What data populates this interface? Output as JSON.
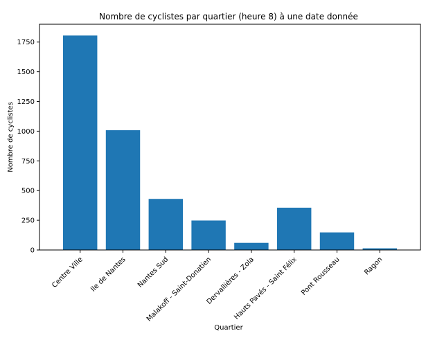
{
  "chart_data": {
    "type": "bar",
    "title": "Nombre de cyclistes par quartier (heure 8) à une date donnée",
    "xlabel": "Quartier",
    "ylabel": "Nombre de cyclistes",
    "categories": [
      "Centre Ville",
      "Ile de Nantes",
      "Nantes Sud",
      "Malakoff - Saint-Donatien",
      "Dervallières - Zola",
      "Hauts Pavés - Saint Félix",
      "Pont Rousseau",
      "Ragon"
    ],
    "values": [
      1805,
      1008,
      430,
      248,
      60,
      356,
      148,
      14
    ],
    "ylim": [
      0,
      1900
    ],
    "yticks": [
      0,
      250,
      500,
      750,
      1000,
      1250,
      1500,
      1750
    ],
    "bar_color": "#1f77b4",
    "grid": false
  }
}
